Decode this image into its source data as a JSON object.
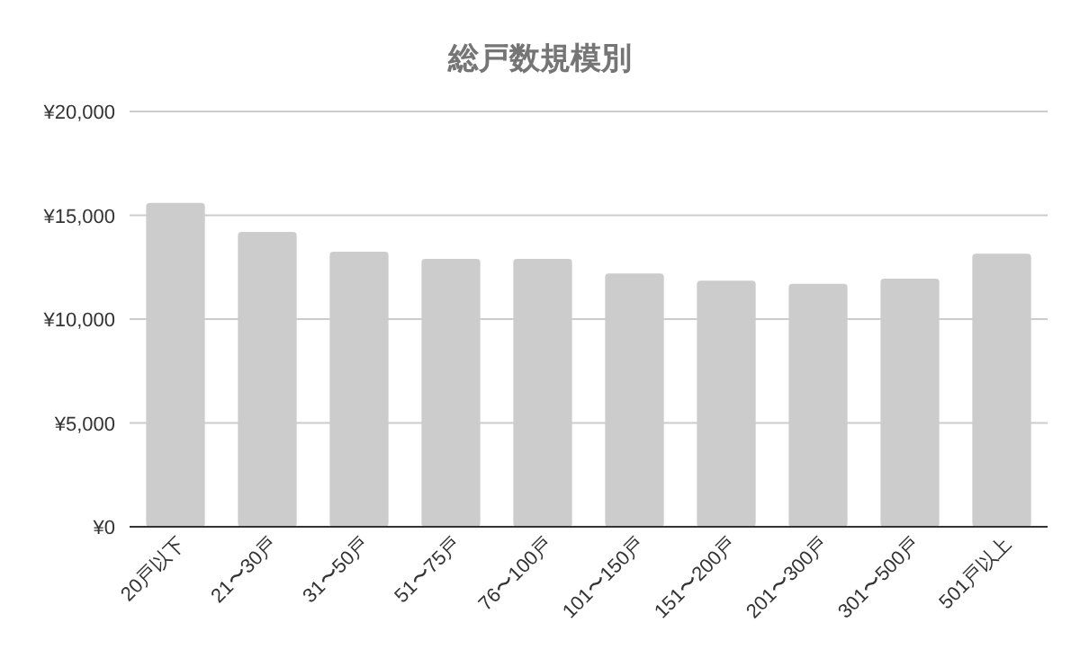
{
  "chart_data": {
    "type": "bar",
    "title": "総戸数規模別",
    "categories": [
      "20戸以下",
      "21〜30戸",
      "31〜50戸",
      "51〜75戸",
      "76〜100戸",
      "101〜150戸",
      "151〜200戸",
      "201〜300戸",
      "301〜500戸",
      "501戸以上"
    ],
    "values": [
      15600,
      14200,
      13250,
      12900,
      12900,
      12200,
      11850,
      11700,
      11950,
      13150
    ],
    "color": "#cccccc",
    "ylim": [
      0,
      20000
    ],
    "yticks": [
      {
        "value": 0,
        "label": "¥0"
      },
      {
        "value": 5000,
        "label": "¥5,000"
      },
      {
        "value": 10000,
        "label": "¥10,000"
      },
      {
        "value": 15000,
        "label": "¥15,000"
      },
      {
        "value": 20000,
        "label": "¥20,000"
      }
    ],
    "grid": "y"
  }
}
